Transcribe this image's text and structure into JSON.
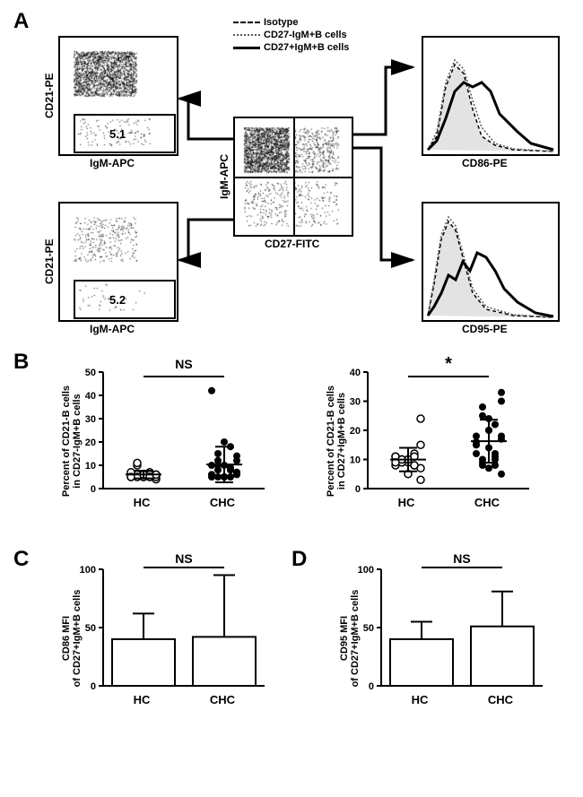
{
  "panelA": {
    "label": "A",
    "legend": {
      "isotype": "Isotype",
      "cd27neg": "CD27-IgM+B cells",
      "cd27pos": "CD27+IgM+B cells"
    },
    "plot_tl": {
      "y_axis": "CD21-PE",
      "x_axis": "IgM-APC",
      "gate_label": "5.1"
    },
    "plot_bl": {
      "y_axis": "CD21-PE",
      "x_axis": "IgM-APC",
      "gate_label": "5.2"
    },
    "plot_center": {
      "y_axis": "IgM-APC",
      "x_axis": "CD27-FITC"
    },
    "hist_tr": {
      "x_axis": "CD86-PE"
    },
    "hist_br": {
      "x_axis": "CD95-PE"
    }
  },
  "panelB": {
    "label": "B",
    "left": {
      "y_axis": "Percent of CD21-B cells\nin CD27-IgM+B cells",
      "x_labels": [
        "HC",
        "CHC"
      ],
      "sig": "NS",
      "ylim": [
        0,
        50
      ],
      "ticks": [
        0,
        10,
        20,
        30,
        40,
        50
      ],
      "hc_points": [
        5,
        6,
        5,
        7,
        4,
        6,
        10,
        5,
        6,
        5,
        7,
        5,
        6,
        5,
        6,
        5,
        11,
        6,
        5,
        6
      ],
      "chc_points": [
        5,
        8,
        10,
        5,
        12,
        6,
        15,
        5,
        18,
        7,
        10,
        5,
        20,
        8,
        6,
        42,
        12,
        5,
        8,
        14,
        6,
        10,
        5,
        9,
        7
      ]
    },
    "right": {
      "y_axis": "Percent of CD21-B cells\nin CD27+IgM+B cells",
      "x_labels": [
        "HC",
        "CHC"
      ],
      "sig": "*",
      "ylim": [
        0,
        40
      ],
      "ticks": [
        0,
        10,
        20,
        30,
        40
      ],
      "hc_points": [
        8,
        10,
        9,
        12,
        7,
        11,
        9,
        10,
        8,
        24,
        11,
        9,
        10,
        8,
        15,
        9,
        10,
        5,
        11,
        3
      ],
      "chc_points": [
        15,
        10,
        20,
        8,
        18,
        12,
        25,
        7,
        22,
        5,
        16,
        28,
        14,
        10,
        30,
        18,
        8,
        24,
        12,
        33,
        15,
        9,
        20,
        11,
        17
      ]
    }
  },
  "panelC": {
    "label": "C",
    "y_axis": "CD86 MFI\nof CD27+IgM+B cells",
    "x_labels": [
      "HC",
      "CHC"
    ],
    "sig": "NS",
    "ylim": [
      0,
      100
    ],
    "ticks": [
      0,
      50,
      100
    ],
    "hc_mean": 40,
    "hc_err": 22,
    "chc_mean": 42,
    "chc_err": 53
  },
  "panelD": {
    "label": "D",
    "y_axis": "CD95 MFI\nof CD27+IgM+B cells",
    "x_labels": [
      "HC",
      "CHC"
    ],
    "sig": "NS",
    "ylim": [
      0,
      100
    ],
    "ticks": [
      0,
      50,
      100
    ],
    "hc_mean": 40,
    "hc_err": 15,
    "chc_mean": 51,
    "chc_err": 30
  },
  "colors": {
    "black": "#000000",
    "white": "#ffffff",
    "gray_fill": "#d0d0d0"
  }
}
